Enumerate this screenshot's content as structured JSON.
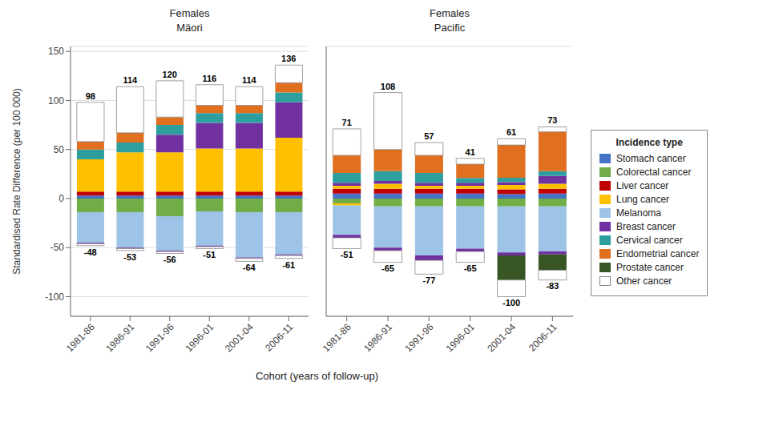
{
  "chart_data": [
    {
      "type": "bar",
      "stacked": true,
      "title": "Females",
      "subtitle": "Mäori",
      "ylabel": "Standardised Rate Difference (per 100 000)",
      "xlabel": "Cohort (years of follow-up)",
      "categories": [
        "1981-86",
        "1986-91",
        "1991-96",
        "1996-01",
        "2001-04",
        "2006-11"
      ],
      "ylim": [
        -120,
        155
      ],
      "yticks": [
        -100,
        -50,
        0,
        50,
        100,
        150
      ],
      "grid": true,
      "series": [
        {
          "name": "Stomach cancer",
          "color": "#4472C4",
          "values": [
            3,
            3,
            3,
            3,
            3,
            3
          ],
          "negative_values": [
            0,
            0,
            0,
            0,
            0,
            0
          ]
        },
        {
          "name": "Colorectal cancer",
          "color": "#70AD47",
          "values": [
            0,
            0,
            0,
            0,
            0,
            0
          ],
          "negative_values": [
            -14,
            -14,
            -18,
            -13,
            -14,
            -14
          ]
        },
        {
          "name": "Liver cancer",
          "color": "#C00000",
          "values": [
            4,
            4,
            4,
            4,
            4,
            4
          ],
          "negative_values": [
            0,
            0,
            0,
            0,
            0,
            0
          ]
        },
        {
          "name": "Lung cancer",
          "color": "#FFC000",
          "values": [
            33,
            40,
            40,
            44,
            44,
            55
          ],
          "negative_values": [
            0,
            0,
            0,
            0,
            0,
            0
          ]
        },
        {
          "name": "Melanoma",
          "color": "#9DC3E6",
          "values": [
            0,
            0,
            0,
            0,
            0,
            0
          ],
          "negative_values": [
            -31,
            -36,
            -35,
            -35,
            -46,
            -43
          ]
        },
        {
          "name": "Breast cancer",
          "color": "#7030A0",
          "values": [
            0,
            0,
            18,
            26,
            26,
            36
          ],
          "negative_values": [
            -1,
            -1,
            -1,
            -1,
            -1,
            -1
          ]
        },
        {
          "name": "Cervical cancer",
          "color": "#2E9E9E",
          "values": [
            10,
            10,
            10,
            10,
            10,
            10
          ],
          "negative_values": [
            0,
            0,
            0,
            0,
            0,
            0
          ]
        },
        {
          "name": "Endometrial cancer",
          "color": "#E07020",
          "values": [
            8,
            10,
            8,
            8,
            8,
            10
          ],
          "negative_values": [
            0,
            0,
            0,
            0,
            0,
            0
          ]
        },
        {
          "name": "Prostate cancer",
          "color": "#375623",
          "values": [
            0,
            0,
            0,
            0,
            0,
            0
          ],
          "negative_values": [
            0,
            0,
            0,
            0,
            0,
            0
          ]
        },
        {
          "name": "Other cancer",
          "color": "#FFFFFF",
          "values": [
            40,
            47,
            37,
            21,
            19,
            18
          ],
          "negative_values": [
            -2,
            -2,
            -2,
            -2,
            -3,
            -3
          ]
        }
      ],
      "totals": [
        98,
        114,
        120,
        116,
        114,
        136
      ],
      "negative_totals": [
        -48,
        -53,
        -56,
        -51,
        -64,
        -61
      ]
    },
    {
      "type": "bar",
      "stacked": true,
      "title": "Females",
      "subtitle": "Pacific",
      "categories": [
        "1981-86",
        "1986-91",
        "1991-96",
        "1996-01",
        "2001-04",
        "2006-11"
      ],
      "ylim": [
        -120,
        155
      ],
      "yticks": [
        -100,
        -50,
        0,
        50,
        100,
        150
      ],
      "grid": true,
      "tick_labels": "x",
      "legend": "right",
      "legend_title": "Incidence type",
      "series": [
        {
          "name": "Stomach cancer",
          "color": "#4472C4",
          "values": [
            5,
            5,
            5,
            5,
            4.621212121212121,
            5
          ],
          "negative_values": [
            0,
            0,
            0,
            0,
            0,
            0
          ]
        },
        {
          "name": "Colorectal cancer",
          "color": "#70AD47",
          "values": [
            0,
            0,
            0,
            0,
            0,
            0
          ],
          "negative_values": [
            -5,
            -8,
            -8,
            -8,
            -8,
            -8
          ]
        },
        {
          "name": "Liver cancer",
          "color": "#C00000",
          "values": [
            5,
            5,
            5,
            5,
            4.621212121212121,
            5
          ],
          "negative_values": [
            0,
            0,
            0,
            0,
            0,
            0
          ]
        },
        {
          "name": "Lung cancer",
          "color": "#FFC000",
          "values": [
            3,
            5,
            3,
            3,
            4.621212121212121,
            5
          ],
          "negative_values": [
            -2,
            0,
            0,
            0,
            0,
            0
          ]
        },
        {
          "name": "Melanoma",
          "color": "#9DC3E6",
          "values": [
            0,
            0,
            0,
            0,
            0,
            0
          ],
          "negative_values": [
            -30,
            -42,
            -50,
            -43,
            -47,
            -46
          ]
        },
        {
          "name": "Breast cancer",
          "color": "#7030A0",
          "values": [
            3,
            3,
            3,
            3,
            2.772727272727273,
            8
          ],
          "negative_values": [
            -3,
            -3,
            -5,
            -3,
            -3,
            -3
          ]
        },
        {
          "name": "Cervical cancer",
          "color": "#2E9E9E",
          "values": [
            10,
            10,
            10,
            5,
            4.621212121212121,
            5
          ],
          "negative_values": [
            0,
            0,
            0,
            0,
            0,
            0
          ]
        },
        {
          "name": "Endometrial cancer",
          "color": "#E07020",
          "values": [
            18,
            22,
            18,
            14,
            33.27272727272727,
            40
          ],
          "negative_values": [
            0,
            0,
            0,
            0,
            0,
            0
          ]
        },
        {
          "name": "Prostate cancer",
          "color": "#375623",
          "values": [
            0,
            0,
            0,
            0,
            0,
            0
          ],
          "negative_values": [
            0,
            0,
            0,
            0,
            -25,
            -16
          ]
        },
        {
          "name": "Other cancer",
          "color": "#FFFFFF",
          "values": [
            27,
            58,
            13,
            6,
            6.46969696969697,
            5
          ],
          "negative_values": [
            -11,
            -12,
            -14,
            -11,
            -17,
            -10
          ]
        }
      ],
      "totals": [
        71,
        108,
        57,
        41,
        61,
        73
      ],
      "negative_totals": [
        -51,
        -65,
        -77,
        -65,
        -100,
        -83
      ]
    }
  ]
}
